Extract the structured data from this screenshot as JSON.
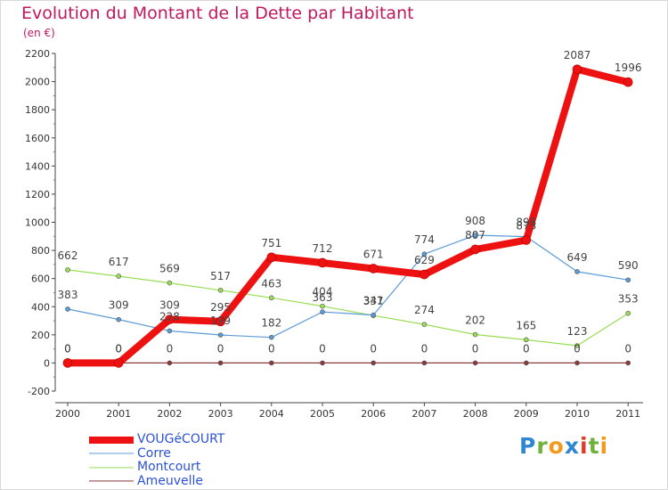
{
  "title": "Evolution du Montant de la Dette par Habitant",
  "subtitle": "(en €)",
  "brand": {
    "letters": [
      {
        "ch": "P",
        "color": "#2f86d1"
      },
      {
        "ch": "r",
        "color": "#6fb13a"
      },
      {
        "ch": "o",
        "color": "#f39a1e"
      },
      {
        "ch": "x",
        "color": "#2f86d1"
      },
      {
        "ch": "i",
        "color": "#e23a2a"
      },
      {
        "ch": "t",
        "color": "#6fb13a"
      },
      {
        "ch": "i",
        "color": "#f39a1e"
      }
    ]
  },
  "chart_data": {
    "type": "line",
    "x": [
      "2000",
      "2001",
      "2002",
      "2003",
      "2004",
      "2005",
      "2006",
      "2007",
      "2008",
      "2009",
      "2010",
      "2011"
    ],
    "ylim": [
      -200,
      2200
    ],
    "yticks": [
      -200,
      0,
      200,
      400,
      600,
      800,
      1000,
      1200,
      1400,
      1600,
      1800,
      2000,
      2200
    ],
    "grid": false,
    "legend_position": "bottom-left",
    "series": [
      {
        "name": "Ameuvelle",
        "color": "#8b3a3a",
        "width": 1.2,
        "marker": 4,
        "values": [
          0,
          0,
          0,
          0,
          0,
          0,
          0,
          0,
          0,
          0,
          0,
          0
        ],
        "labels": [
          "0",
          "0",
          "0",
          "0",
          "0",
          "0",
          "0",
          "0",
          "0",
          "0",
          "0",
          "0"
        ]
      },
      {
        "name": "Montcourt",
        "color": "#99dd55",
        "width": 1.2,
        "marker": 4,
        "values": [
          662,
          617,
          569,
          517,
          463,
          404,
          337,
          274,
          202,
          165,
          123,
          353
        ],
        "labels": [
          "662",
          "617",
          "569",
          "517",
          "463",
          "404",
          "337",
          "274",
          "202",
          "165",
          "123",
          "353"
        ]
      },
      {
        "name": "Corre",
        "color": "#5b9bd5",
        "width": 1.2,
        "marker": 4,
        "values": [
          383,
          309,
          228,
          199,
          182,
          363,
          341,
          774,
          908,
          898,
          649,
          590
        ],
        "labels": [
          "383",
          "309",
          "228",
          "199",
          "182",
          "363",
          "341",
          "774",
          "908",
          "898",
          "649",
          "590"
        ]
      },
      {
        "name": "VOUGéCOURT",
        "color": "#ee1111",
        "width": 8,
        "marker": 7,
        "values": [
          0,
          0,
          309,
          295,
          751,
          712,
          671,
          629,
          807,
          873,
          2087,
          1996
        ],
        "labels": [
          "0",
          "0",
          "309",
          "295",
          "751",
          "712",
          "671",
          "629",
          "807",
          "873",
          "2087",
          "1996"
        ]
      }
    ],
    "legend_order": [
      "VOUGéCOURT",
      "Corre",
      "Montcourt",
      "Ameuvelle"
    ]
  }
}
